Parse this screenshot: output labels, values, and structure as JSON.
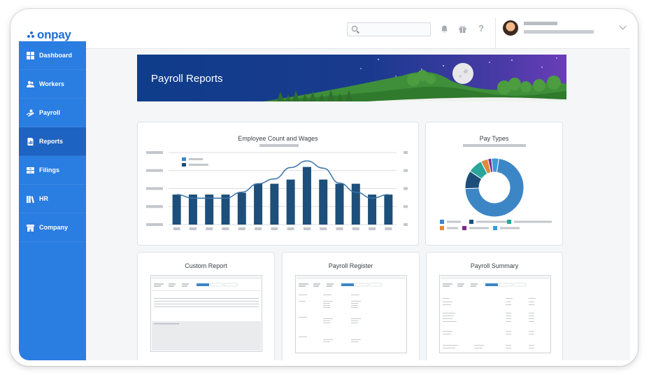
{
  "app": {
    "logo_text": "onpay"
  },
  "topbar": {
    "search_placeholder": "",
    "icons": [
      "search-icon",
      "bell-icon",
      "gift-icon",
      "help-icon",
      "chevron-down-icon"
    ]
  },
  "sidebar": {
    "items": [
      {
        "label": "Dashboard",
        "icon": "dashboard-icon"
      },
      {
        "label": "Workers",
        "icon": "workers-icon"
      },
      {
        "label": "Payroll",
        "icon": "payroll-icon"
      },
      {
        "label": "Reports",
        "icon": "reports-icon",
        "active": true
      },
      {
        "label": "Filings",
        "icon": "filings-icon"
      },
      {
        "label": "HR",
        "icon": "hr-icon"
      },
      {
        "label": "Company",
        "icon": "company-icon"
      }
    ]
  },
  "banner": {
    "title": "Payroll Reports"
  },
  "cards": {
    "employee_count": {
      "title": "Employee Count and Wages"
    },
    "pay_types": {
      "title": "Pay Types"
    },
    "custom_report": {
      "title": "Custom Report"
    },
    "payroll_register": {
      "title": "Payroll Register"
    },
    "payroll_summary": {
      "title": "Payroll Summary"
    }
  },
  "colors": {
    "brand": "#2a7de1",
    "sidebar_active": "#1d63c2",
    "bar": "#1d4f7a",
    "line": "#3a73a6",
    "donut": [
      "#3d86c6",
      "#1d4f7a",
      "#2aa59a",
      "#e08a3c",
      "#7b2d8b",
      "#3d9bd6"
    ]
  },
  "chart_data": [
    {
      "type": "bar",
      "title": "Employee Count and Wages",
      "categories": [
        "",
        "",
        "",
        "",
        "",
        "",
        "",
        "",
        "",
        "",
        "",
        "",
        "",
        ""
      ],
      "series": [
        {
          "values": [
            5,
            5,
            5,
            5,
            5.3,
            6.8,
            6.8,
            7.5,
            9.6,
            7.5,
            6.8,
            6.8,
            5,
            5
          ]
        },
        {
          "values": [
            5,
            4.4,
            4.4,
            4.4,
            5.4,
            6.8,
            7.6,
            9.5,
            10.6,
            9.4,
            6.9,
            5.4,
            4.4,
            5
          ]
        }
      ],
      "ylim": [
        0,
        12
      ],
      "grid": true
    },
    {
      "type": "pie",
      "title": "Pay Types",
      "values": [
        72,
        10,
        8,
        4,
        2,
        4
      ]
    }
  ]
}
